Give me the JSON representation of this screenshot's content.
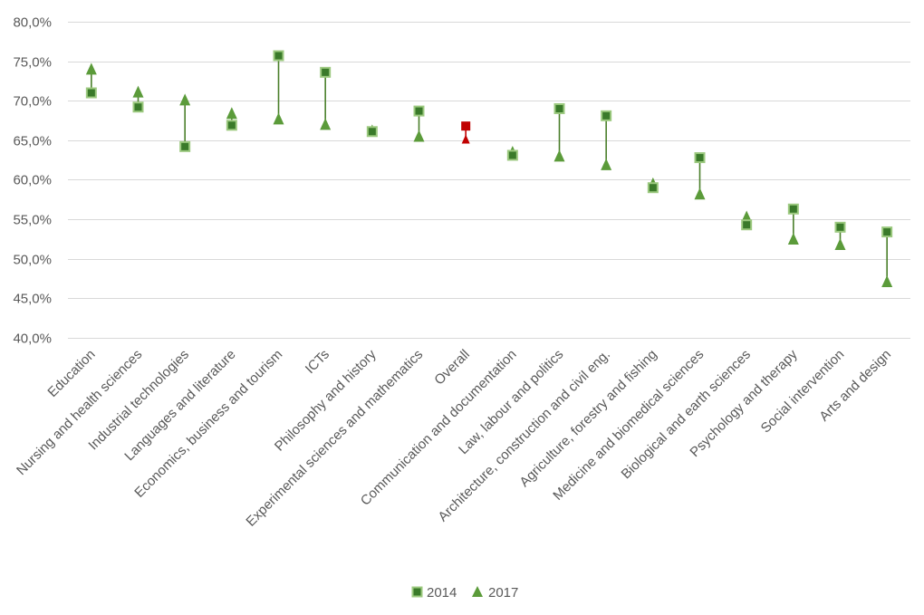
{
  "colors": {
    "marker_2014_fill": "#3a7a2a",
    "marker_2014_border": "#9cc97f",
    "marker_2017": "#5b9b3a",
    "connector": "#4a7f2a",
    "overall_2014": "#c00000",
    "overall_2017": "#c00000",
    "grid": "#d9d9d9",
    "text": "#595959"
  },
  "chart_data": {
    "type": "scatter",
    "title": "",
    "xlabel": "",
    "ylabel": "",
    "ylim": [
      0.4,
      0.8
    ],
    "y_ticks": [
      "40,0%",
      "45,0%",
      "50,0%",
      "55,0%",
      "60,0%",
      "65,0%",
      "70,0%",
      "75,0%",
      "80,0%"
    ],
    "grid": true,
    "legend_position": "bottom",
    "categories": [
      "Education",
      "Nursing and health sciences",
      "Industrial technologies",
      "Languages and literature",
      "Economics, business and tourism",
      "ICTs",
      "Philosophy and history",
      "Experimental sciences and mathematics",
      "Overall",
      "Communication and documentation",
      "Law, labour and politics",
      "Architecture, construction and civil eng.",
      "Agriculture, forestry and fishing",
      "Medicine and biomedical sciences",
      "Biological and earth sciences",
      "Psychology and therapy",
      "Social intervention",
      "Arts and design"
    ],
    "highlight_category": "Overall",
    "series": [
      {
        "name": "2014",
        "marker": "square",
        "values": [
          0.71,
          0.692,
          0.642,
          0.669,
          0.757,
          0.736,
          0.661,
          0.687,
          0.668,
          0.631,
          0.69,
          0.681,
          0.59,
          0.628,
          0.543,
          0.563,
          0.54,
          0.534
        ]
      },
      {
        "name": "2017",
        "marker": "triangle",
        "values": [
          0.74,
          0.711,
          0.701,
          0.684,
          0.677,
          0.67,
          0.662,
          0.655,
          0.651,
          0.635,
          0.63,
          0.619,
          0.595,
          0.582,
          0.553,
          0.525,
          0.518,
          0.471
        ]
      }
    ]
  }
}
